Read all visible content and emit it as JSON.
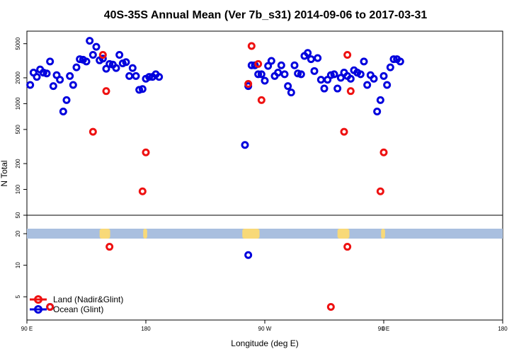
{
  "chart_data": {
    "type": "scatter",
    "title": "40S-35S Annual Mean (Ver 7b_s31)   2014-09-06 to 2017-03-31",
    "xlabel": "Longitude (deg E)",
    "ylabel": "N Total",
    "x_ticks": [
      "90 E",
      "180",
      "90 W",
      "0",
      "90 E",
      "180"
    ],
    "y_scale": "log",
    "upper_panel": {
      "ylim": [
        50,
        7000
      ],
      "y_ticks": [
        "50",
        "100",
        "200",
        "500",
        "1000",
        "2000",
        "5000"
      ]
    },
    "lower_panel": {
      "ylim": [
        3,
        30
      ],
      "y_ticks": [
        "5",
        "10",
        "20"
      ]
    },
    "legend": {
      "position": "bottom-left",
      "entries": [
        "Land (Nadir&Glint)",
        "Ocean (Glint)"
      ]
    },
    "colors": {
      "land": "#ee1111",
      "ocean": "#0000dd",
      "land_strip": "#a9bfdf",
      "land_patch": "#f8d978"
    },
    "series": [
      {
        "name": "Land (Nadir&Glint)",
        "points": [
          [
            140,
            470
          ],
          [
            147.5,
            3700
          ],
          [
            150,
            1400
          ],
          [
            177.5,
            95
          ],
          [
            180,
            270
          ],
          [
            257.5,
            1700
          ],
          [
            260,
            4700
          ],
          [
            265,
            2900
          ],
          [
            267.5,
            1100
          ],
          [
            330,
            470
          ],
          [
            332.5,
            3700
          ],
          [
            335,
            1400
          ],
          [
            357.5,
            95
          ],
          [
            360,
            270
          ]
        ]
      },
      {
        "name": "Ocean (Glint)",
        "points": [
          [
            92.5,
            1650
          ],
          [
            95,
            2300
          ],
          [
            97.5,
            2050
          ],
          [
            100,
            2500
          ],
          [
            102.5,
            2300
          ],
          [
            105,
            2250
          ],
          [
            107.5,
            3100
          ],
          [
            110,
            1600
          ],
          [
            112.5,
            2150
          ],
          [
            115,
            1900
          ],
          [
            117.5,
            810
          ],
          [
            120,
            1100
          ],
          [
            122.5,
            2100
          ],
          [
            125,
            1650
          ],
          [
            127.5,
            2650
          ],
          [
            130,
            3300
          ],
          [
            132.5,
            3250
          ],
          [
            135,
            3100
          ],
          [
            137.5,
            5400
          ],
          [
            140,
            3700
          ],
          [
            142.5,
            4600
          ],
          [
            145,
            3200
          ],
          [
            147.5,
            3350
          ],
          [
            150,
            2550
          ],
          [
            152.5,
            2900
          ],
          [
            155,
            2850
          ],
          [
            157.5,
            2600
          ],
          [
            160,
            3700
          ],
          [
            162.5,
            2950
          ],
          [
            165,
            3050
          ],
          [
            167.5,
            2100
          ],
          [
            170,
            2600
          ],
          [
            172.5,
            2100
          ],
          [
            175,
            1450
          ],
          [
            177.5,
            1480
          ],
          [
            180,
            1950
          ],
          [
            182.5,
            2050
          ],
          [
            185,
            2050
          ],
          [
            187.5,
            2200
          ],
          [
            190,
            2050
          ],
          [
            255,
            330
          ],
          [
            257.5,
            1600
          ],
          [
            260,
            2800
          ],
          [
            262.5,
            2800
          ],
          [
            265,
            2200
          ],
          [
            267.5,
            2200
          ],
          [
            270,
            1850
          ],
          [
            272.5,
            2750
          ],
          [
            275,
            3150
          ],
          [
            277.5,
            2100
          ],
          [
            280,
            2300
          ],
          [
            282.5,
            2800
          ],
          [
            285,
            2200
          ],
          [
            287.5,
            1600
          ],
          [
            290,
            1350
          ],
          [
            292.5,
            2800
          ],
          [
            295,
            2250
          ],
          [
            297.5,
            2200
          ],
          [
            300,
            3600
          ],
          [
            302.5,
            3900
          ],
          [
            305,
            3300
          ],
          [
            307.5,
            2400
          ],
          [
            310,
            3400
          ],
          [
            312.5,
            1900
          ],
          [
            315,
            1500
          ],
          [
            317.5,
            1900
          ],
          [
            320,
            2150
          ],
          [
            322.5,
            2200
          ],
          [
            325,
            1500
          ],
          [
            327.5,
            2000
          ],
          [
            330,
            2300
          ],
          [
            332.5,
            2100
          ],
          [
            335,
            1950
          ],
          [
            337.5,
            2450
          ],
          [
            340,
            2300
          ],
          [
            342.5,
            2200
          ],
          [
            345,
            3100
          ],
          [
            347.5,
            1650
          ],
          [
            350,
            2150
          ],
          [
            352.5,
            1950
          ],
          [
            355,
            810
          ],
          [
            357.5,
            1100
          ],
          [
            360,
            2100
          ],
          [
            362.5,
            1650
          ],
          [
            365,
            2650
          ],
          [
            367.5,
            3300
          ],
          [
            370,
            3300
          ],
          [
            372.5,
            3100
          ]
        ]
      },
      {
        "name": "Land (Nadir&Glint), lower panel",
        "points": [
          [
            107.5,
            4
          ],
          [
            152.5,
            15
          ],
          [
            320,
            4
          ],
          [
            332.5,
            15
          ]
        ]
      },
      {
        "name": "Ocean (Glint), lower panel",
        "points": [
          [
            107.5,
            4
          ],
          [
            257.5,
            12.5
          ]
        ]
      }
    ]
  }
}
